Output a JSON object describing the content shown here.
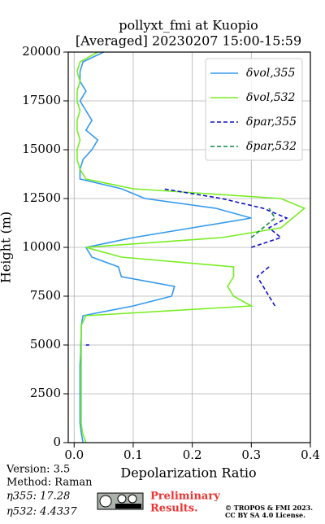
{
  "chart_data": {
    "type": "line",
    "title": "pollyxt_fmi at Kuopio",
    "subtitle": "[Averaged] 20230207 15:00-15:59",
    "x_label": "Depolarization Ratio",
    "y_label": "Height (m)",
    "heights": [
      0,
      500,
      1000,
      1500,
      2000,
      2500,
      3000,
      3500,
      4000,
      4500,
      5000,
      5500,
      6000,
      6500,
      7000,
      7500,
      8000,
      8500,
      9000,
      9500,
      10000,
      10500,
      11000,
      11500,
      12000,
      12500,
      13000,
      13500,
      14000,
      14500,
      15000,
      15500,
      16000,
      16500,
      17000,
      17500,
      18000,
      18500,
      19000,
      19500,
      20000
    ],
    "series": [
      {
        "name": "δvol,355",
        "color": "#3399ee",
        "dashed": false,
        "values": [
          0.015,
          0.012,
          0.01,
          0.01,
          0.01,
          0.01,
          0.01,
          0.01,
          0.01,
          0.011,
          0.011,
          0.012,
          0.012,
          0.015,
          0.1,
          0.165,
          0.17,
          0.08,
          0.075,
          0.03,
          0.02,
          0.1,
          0.2,
          0.3,
          0.24,
          0.12,
          0.08,
          0.01,
          0.01,
          0.015,
          0.03,
          0.04,
          0.02,
          0.03,
          0.02,
          0.01,
          0.02,
          0.01,
          0.01,
          0.015,
          0.05
        ]
      },
      {
        "name": "δvol,532",
        "color": "#77ee22",
        "dashed": false,
        "values": [
          0.02,
          0.014,
          0.012,
          0.012,
          0.012,
          0.012,
          0.012,
          0.012,
          0.012,
          0.012,
          0.012,
          0.012,
          0.012,
          0.02,
          0.3,
          0.27,
          0.26,
          0.27,
          0.27,
          0.08,
          0.02,
          0.25,
          0.35,
          0.37,
          0.39,
          0.35,
          0.1,
          0.02,
          0.01,
          0.005,
          0.005,
          0.01,
          0.005,
          0.005,
          0.01,
          0.005,
          0.005,
          0.01,
          0.005,
          0.01,
          0.04
        ]
      },
      {
        "name": "δpar,355",
        "color": "#1111cc",
        "dashed": true,
        "values": [
          null,
          null,
          null,
          null,
          null,
          null,
          null,
          null,
          null,
          null,
          0.02,
          null,
          null,
          null,
          0.34,
          0.33,
          0.32,
          0.31,
          0.33,
          null,
          0.3,
          0.35,
          0.33,
          0.36,
          0.32,
          0.25,
          0.15,
          null,
          null,
          null,
          null,
          null,
          null,
          null,
          null,
          null,
          null,
          null,
          null,
          null,
          null
        ]
      },
      {
        "name": "δpar,532",
        "color": "#118844",
        "dashed": true,
        "values": [
          null,
          null,
          null,
          null,
          null,
          null,
          null,
          null,
          null,
          null,
          null,
          null,
          null,
          null,
          null,
          null,
          null,
          null,
          null,
          null,
          null,
          0.3,
          0.32,
          0.34,
          0.33,
          null,
          null,
          null,
          null,
          null,
          null,
          null,
          null,
          null,
          null,
          null,
          null,
          null,
          null,
          null,
          null
        ]
      }
    ],
    "xlim": [
      -0.01,
      0.4
    ],
    "ylim": [
      0,
      20000
    ],
    "xticks": [
      {
        "value": 0,
        "label": "0.0"
      },
      {
        "value": 0.1,
        "label": "0.1"
      },
      {
        "value": 0.2,
        "label": "0.2"
      },
      {
        "value": 0.3,
        "label": "0.3"
      },
      {
        "value": 0.4,
        "label": "0.4"
      }
    ],
    "yticks": [
      0,
      2500,
      5000,
      7500,
      10000,
      12500,
      15000,
      17500,
      20000
    ],
    "grid": true,
    "legend": "upper right"
  },
  "footer": {
    "version": "Version: 3.5",
    "method": "Method: Raman",
    "eta355": "η355:  17.28",
    "eta532": "η532: 4.4337",
    "notice": "Preliminary",
    "notice2": "Results.",
    "copyright": "© TROPOS & FMI 2023.",
    "license": "CC BY SA 4.0 License."
  }
}
